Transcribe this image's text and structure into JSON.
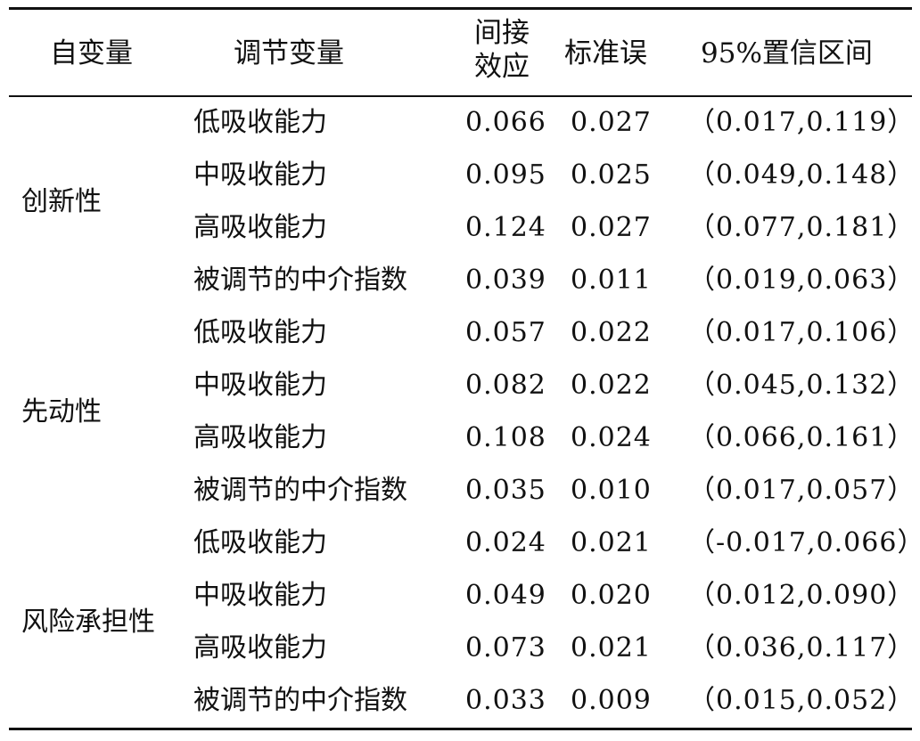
{
  "table": {
    "headers": {
      "independent_var": "自变量",
      "moderator": "调节变量",
      "indirect_effect_line1": "间接",
      "indirect_effect_line2": "效应",
      "std_error": "标准误",
      "ci95": "95%置信区间"
    },
    "groups": [
      {
        "iv": "创新性",
        "rows": [
          {
            "moderator": "低吸收能力",
            "effect": "0.066",
            "se": "0.027",
            "ci": "（0.017,0.119）"
          },
          {
            "moderator": "中吸收能力",
            "effect": "0.095",
            "se": "0.025",
            "ci": "（0.049,0.148）"
          },
          {
            "moderator": "高吸收能力",
            "effect": "0.124",
            "se": "0.027",
            "ci": "（0.077,0.181）"
          },
          {
            "moderator": "被调节的中介指数",
            "effect": "0.039",
            "se": "0.011",
            "ci": "（0.019,0.063）"
          }
        ]
      },
      {
        "iv": "先动性",
        "rows": [
          {
            "moderator": "低吸收能力",
            "effect": "0.057",
            "se": "0.022",
            "ci": "（0.017,0.106）"
          },
          {
            "moderator": "中吸收能力",
            "effect": "0.082",
            "se": "0.022",
            "ci": "（0.045,0.132）"
          },
          {
            "moderator": "高吸收能力",
            "effect": "0.108",
            "se": "0.024",
            "ci": "（0.066,0.161）"
          },
          {
            "moderator": "被调节的中介指数",
            "effect": "0.035",
            "se": "0.010",
            "ci": "（0.017,0.057）"
          }
        ]
      },
      {
        "iv": "风险承担性",
        "rows": [
          {
            "moderator": "低吸收能力",
            "effect": "0.024",
            "se": "0.021",
            "ci": "（-0.017,0.066）"
          },
          {
            "moderator": "中吸收能力",
            "effect": "0.049",
            "se": "0.020",
            "ci": "（0.012,0.090）"
          },
          {
            "moderator": "高吸收能力",
            "effect": "0.073",
            "se": "0.021",
            "ci": "（0.036,0.117）"
          },
          {
            "moderator": "被调节的中介指数",
            "effect": "0.033",
            "se": "0.009",
            "ci": "（0.015,0.052）"
          }
        ]
      }
    ]
  }
}
